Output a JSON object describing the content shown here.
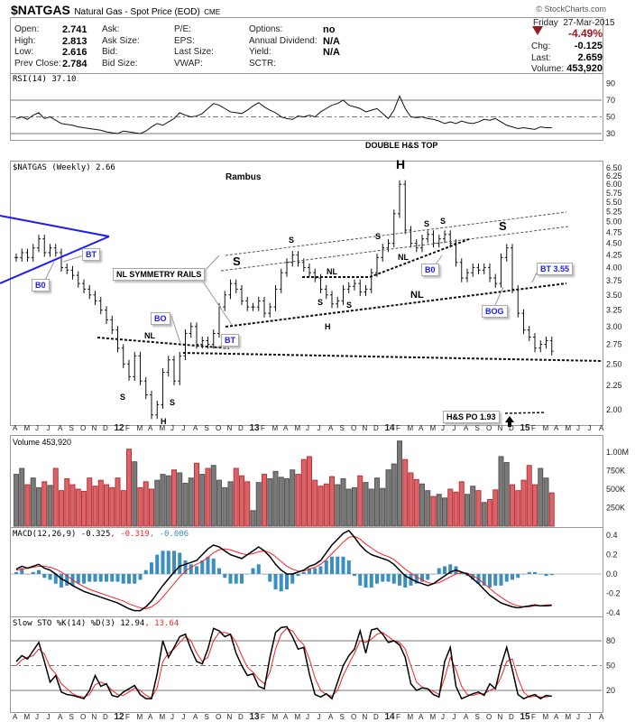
{
  "header": {
    "symbol": "$NATGAS",
    "name": "Natural Gas - Spot Price (EOD)",
    "exchange": "CME",
    "credit": "© StockCharts.com",
    "day": "Friday",
    "date": "27-Mar-2015",
    "pct_change": "-4.49%",
    "chg_label": "Chg:",
    "chg": "-0.125",
    "last_label": "Last:",
    "last": "2.659",
    "volume_label": "Volume:",
    "volume": "453,920"
  },
  "quote": [
    {
      "label": "Open:",
      "value": "2.741"
    },
    {
      "label": "High:",
      "value": "2.813"
    },
    {
      "label": "Low:",
      "value": "2.616"
    },
    {
      "label": "Prev Close:",
      "value": "2.784"
    }
  ],
  "quote2": [
    "Ask:",
    "Ask Size:",
    "Bid:",
    "Bid Size:"
  ],
  "quote3": [
    "P/E:",
    "EPS:",
    "Last Size:",
    "VWAP:"
  ],
  "quote4": [
    {
      "label": "Options:",
      "value": "no"
    },
    {
      "label": "Annual Dividend:",
      "value": "N/A"
    },
    {
      "label": "Yield:",
      "value": "N/A"
    },
    {
      "label": "SCTR:",
      "value": ""
    }
  ],
  "colors": {
    "up": "#7a7a7a",
    "down": "#d9646c",
    "accent": "#1a1aff",
    "neg": "#9b1b24",
    "signal": "#ff2020",
    "hist": "#3a8fc0"
  },
  "annotations": {
    "author": "Rambus",
    "title": "DOUBLE H&S TOP",
    "rails": "NL SYMMETRY RAILS",
    "s": "S",
    "h": "H",
    "nl": "NL",
    "bt": "BT",
    "b0": "B0",
    "bo": "BO",
    "bog": "BOG",
    "bt355": "BT 3.55",
    "po": "H&S PO 1.93"
  },
  "chart_data": {
    "type": "ohlc-multi-panel",
    "title": "$NATGAS (Weekly) 2.66",
    "x_start": "Apr 2011",
    "x_step": "half-month",
    "months": [
      "A",
      "M",
      "J",
      "J",
      "A",
      "S",
      "O",
      "N",
      "D",
      "12",
      "F",
      "M",
      "A",
      "M",
      "J",
      "J",
      "A",
      "S",
      "O",
      "N",
      "D",
      "13",
      "F",
      "M",
      "A",
      "M",
      "J",
      "J",
      "A",
      "S",
      "O",
      "N",
      "D",
      "14",
      "F",
      "M",
      "A",
      "M",
      "J",
      "J",
      "A",
      "S",
      "O",
      "N",
      "D",
      "15",
      "F",
      "M",
      "A",
      "M",
      "J",
      "J",
      "A"
    ],
    "price": {
      "label": "$NATGAS (Weekly) 2.66",
      "scale": "log",
      "ticks": [
        6.5,
        6.25,
        6.0,
        5.75,
        5.5,
        5.25,
        5.0,
        4.75,
        4.5,
        4.25,
        4.0,
        3.75,
        3.5,
        3.25,
        3.0,
        2.75,
        2.5,
        2.25,
        2.0
      ],
      "close": [
        4.2,
        4.3,
        4.2,
        4.4,
        4.6,
        4.3,
        4.4,
        4.3,
        4.0,
        3.95,
        3.85,
        3.7,
        3.6,
        3.5,
        3.4,
        3.25,
        3.1,
        2.95,
        2.7,
        2.5,
        2.35,
        2.6,
        2.3,
        2.15,
        1.95,
        2.05,
        2.4,
        2.55,
        2.3,
        2.6,
        2.9,
        3.0,
        2.75,
        2.8,
        2.75,
        2.9,
        3.3,
        3.5,
        3.7,
        3.6,
        3.4,
        3.3,
        3.3,
        3.4,
        3.2,
        3.3,
        3.6,
        3.9,
        4.1,
        4.25,
        4.1,
        4.0,
        3.9,
        3.8,
        3.6,
        3.5,
        3.35,
        3.4,
        3.6,
        3.65,
        3.7,
        3.55,
        3.6,
        3.9,
        4.2,
        4.4,
        4.5,
        5.2,
        6.0,
        4.8,
        4.5,
        4.4,
        4.6,
        4.7,
        4.5,
        4.6,
        4.7,
        4.5,
        4.1,
        3.8,
        3.9,
        4.0,
        3.95,
        4.0,
        3.8,
        3.7,
        4.2,
        4.4,
        3.6,
        3.2,
        2.95,
        2.85,
        2.7,
        2.75,
        2.8,
        2.66
      ]
    },
    "rsi": {
      "label": "RSI(14) 37.10",
      "ticks": [
        90,
        70,
        50,
        30
      ],
      "values": [
        48,
        50,
        47,
        52,
        55,
        48,
        50,
        46,
        42,
        41,
        40,
        38,
        37,
        36,
        35,
        34,
        32,
        31,
        30,
        33,
        32,
        31,
        30,
        33,
        38,
        42,
        40,
        44,
        48,
        55,
        52,
        50,
        51,
        54,
        60,
        66,
        64,
        60,
        56,
        55,
        54,
        58,
        63,
        67,
        62,
        58,
        55,
        50,
        48,
        47,
        51,
        50,
        52,
        50,
        56,
        60,
        64,
        66,
        70,
        64,
        62,
        60,
        56,
        58,
        60,
        54,
        48,
        58,
        75,
        60,
        50,
        49,
        50,
        48,
        47,
        45,
        42,
        44,
        42,
        45,
        43,
        42,
        44,
        47,
        46,
        48,
        44,
        40,
        38,
        36,
        37,
        36,
        35,
        38,
        37,
        37
      ]
    },
    "volume": {
      "label": "Volume 453,920",
      "ticks": [
        "1.00M",
        "750K",
        "500K",
        "250K"
      ],
      "unit": "thousands",
      "values": [
        700,
        780,
        560,
        650,
        520,
        600,
        550,
        780,
        480,
        640,
        560,
        500,
        470,
        650,
        540,
        620,
        560,
        520,
        650,
        480,
        1040,
        870,
        520,
        600,
        500,
        620,
        700,
        680,
        760,
        720,
        580,
        650,
        850,
        700,
        780,
        820,
        620,
        520,
        600,
        780,
        680,
        600,
        210,
        590,
        700,
        640,
        740,
        660,
        640,
        760,
        700,
        900,
        940,
        620,
        540,
        570,
        670,
        560,
        640,
        500,
        520,
        680,
        590,
        500,
        650,
        510,
        760,
        840,
        1150,
        900,
        720,
        630,
        570,
        480,
        400,
        430,
        380,
        500,
        460,
        600,
        430,
        540,
        480,
        320,
        360,
        490,
        940,
        860,
        560,
        480,
        620,
        820,
        560,
        780,
        650,
        450
      ]
    },
    "macd": {
      "label": "MACD(12,26,9) -0.325",
      "signal_label": ", -0.319",
      "hist_label": ", -0.006",
      "ticks": [
        0.4,
        0.2,
        0.0,
        -0.2,
        -0.4
      ],
      "macd": [
        0.05,
        0.08,
        0.06,
        0.08,
        0.1,
        0.06,
        0.04,
        0.0,
        -0.05,
        -0.08,
        -0.12,
        -0.15,
        -0.18,
        -0.2,
        -0.22,
        -0.24,
        -0.26,
        -0.28,
        -0.3,
        -0.33,
        -0.36,
        -0.38,
        -0.38,
        -0.34,
        -0.28,
        -0.2,
        -0.12,
        -0.05,
        0.02,
        0.08,
        0.1,
        0.12,
        0.14,
        0.2,
        0.26,
        0.3,
        0.28,
        0.24,
        0.2,
        0.18,
        0.16,
        0.2,
        0.24,
        0.28,
        0.24,
        0.18,
        0.1,
        0.04,
        0.0,
        0.0,
        0.02,
        0.04,
        0.08,
        0.1,
        0.14,
        0.22,
        0.3,
        0.36,
        0.42,
        0.45,
        0.38,
        0.3,
        0.24,
        0.2,
        0.18,
        0.16,
        0.14,
        0.1,
        0.04,
        -0.02,
        -0.05,
        -0.08,
        -0.1,
        -0.12,
        -0.1,
        -0.06,
        -0.02,
        0.02,
        0.04,
        0.02,
        0.0,
        -0.05,
        -0.1,
        -0.16,
        -0.22,
        -0.26,
        -0.3,
        -0.32,
        -0.34,
        -0.35,
        -0.34,
        -0.33,
        -0.32,
        -0.33,
        -0.33,
        -0.325
      ],
      "signal": [
        0.04,
        0.05,
        0.06,
        0.07,
        0.08,
        0.08,
        0.07,
        0.05,
        0.02,
        -0.02,
        -0.06,
        -0.1,
        -0.13,
        -0.16,
        -0.18,
        -0.2,
        -0.22,
        -0.24,
        -0.26,
        -0.28,
        -0.31,
        -0.33,
        -0.35,
        -0.36,
        -0.34,
        -0.3,
        -0.24,
        -0.17,
        -0.1,
        -0.03,
        0.03,
        0.07,
        0.1,
        0.13,
        0.17,
        0.22,
        0.25,
        0.26,
        0.25,
        0.23,
        0.21,
        0.2,
        0.21,
        0.23,
        0.24,
        0.22,
        0.18,
        0.13,
        0.08,
        0.05,
        0.03,
        0.03,
        0.05,
        0.07,
        0.1,
        0.15,
        0.21,
        0.27,
        0.33,
        0.38,
        0.39,
        0.36,
        0.31,
        0.27,
        0.23,
        0.2,
        0.18,
        0.15,
        0.1,
        0.05,
        0.01,
        -0.03,
        -0.06,
        -0.09,
        -0.1,
        -0.09,
        -0.06,
        -0.03,
        0.0,
        0.01,
        0.01,
        -0.02,
        -0.05,
        -0.1,
        -0.15,
        -0.2,
        -0.24,
        -0.28,
        -0.31,
        -0.33,
        -0.34,
        -0.34,
        -0.33,
        -0.33,
        -0.32,
        -0.319
      ]
    },
    "sto": {
      "label": "Slow STO %K(14) %D(3) 12.94",
      "d_label": ", 13.64",
      "ticks": [
        80,
        50,
        20
      ],
      "k": [
        55,
        62,
        58,
        68,
        78,
        55,
        30,
        38,
        18,
        15,
        14,
        12,
        10,
        20,
        38,
        25,
        28,
        14,
        12,
        18,
        22,
        26,
        15,
        10,
        10,
        40,
        80,
        60,
        72,
        85,
        88,
        70,
        55,
        52,
        70,
        95,
        92,
        85,
        88,
        65,
        50,
        38,
        40,
        25,
        22,
        60,
        90,
        96,
        97,
        85,
        70,
        72,
        40,
        15,
        12,
        16,
        10,
        30,
        50,
        62,
        70,
        92,
        65,
        93,
        95,
        88,
        78,
        80,
        75,
        60,
        28,
        20,
        23,
        22,
        15,
        12,
        55,
        72,
        25,
        10,
        13,
        16,
        18,
        14,
        28,
        22,
        50,
        72,
        45,
        15,
        10,
        13,
        15,
        10,
        14,
        12.94
      ],
      "d": [
        50,
        57,
        60,
        62,
        70,
        64,
        48,
        40,
        28,
        22,
        16,
        13,
        12,
        15,
        27,
        30,
        27,
        20,
        15,
        14,
        18,
        23,
        20,
        14,
        11,
        23,
        55,
        65,
        70,
        78,
        85,
        80,
        65,
        55,
        60,
        80,
        90,
        90,
        88,
        78,
        62,
        48,
        42,
        34,
        28,
        42,
        70,
        88,
        95,
        92,
        82,
        75,
        58,
        35,
        20,
        15,
        13,
        20,
        38,
        52,
        65,
        80,
        78,
        82,
        88,
        90,
        85,
        80,
        78,
        70,
        50,
        30,
        24,
        22,
        19,
        15,
        35,
        60,
        45,
        25,
        15,
        14,
        16,
        16,
        20,
        23,
        36,
        55,
        58,
        35,
        18,
        12,
        13,
        12,
        12,
        13.64
      ]
    }
  }
}
